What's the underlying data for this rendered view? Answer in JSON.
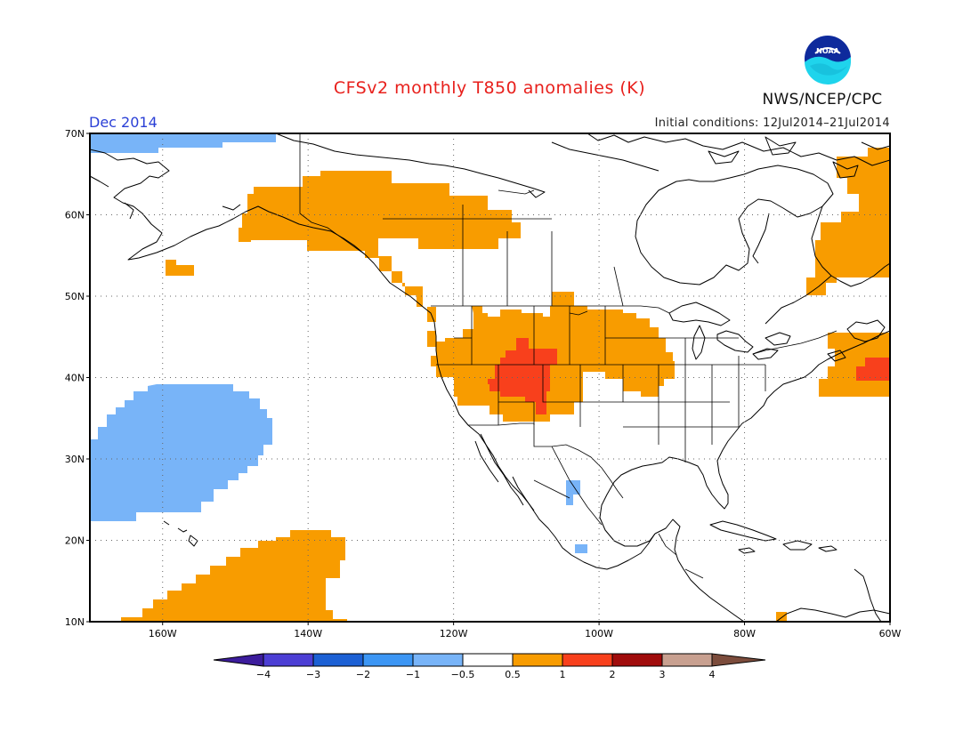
{
  "title": "CFSv2 monthly T850 anomalies (K)",
  "agency": "NWS/NCEP/CPC",
  "logo_text": "NOAA",
  "valid_month": "Dec 2014",
  "initial_conditions": "Initial conditions: 12Jul2014–21Jul2014",
  "map": {
    "lon_range": [
      -170,
      -60
    ],
    "lat_range": [
      10,
      70
    ],
    "lat_ticks": [
      "70N",
      "60N",
      "50N",
      "40N",
      "30N",
      "20N",
      "10N"
    ],
    "lon_ticks": [
      "160W",
      "140W",
      "120W",
      "100W",
      "80W",
      "60W"
    ],
    "gridlines": "dotted",
    "anomaly_regions": [
      {
        "name": "arctic-coast-negative",
        "category": "-1 to -0.5",
        "color": "#78b4f8"
      },
      {
        "name": "alaska-western-canada-warm",
        "category": "0.5 to 1",
        "color": "#f89c00"
      },
      {
        "name": "bering-sea-warm-patch",
        "category": "0.5 to 1",
        "color": "#f89c00"
      },
      {
        "name": "western-us-warm",
        "category": "0.5 to 1",
        "color": "#f89c00"
      },
      {
        "name": "four-corners-hot",
        "category": "1 to 2",
        "color": "#f8401c"
      },
      {
        "name": "northeast-pacific-cool",
        "category": "-1 to -0.5",
        "color": "#78b4f8"
      },
      {
        "name": "central-pacific-warm",
        "category": "0.5 to 1",
        "color": "#f89c00"
      },
      {
        "name": "eastern-canada-warm",
        "category": "0.5 to 1",
        "color": "#f89c00"
      },
      {
        "name": "northwest-atlantic-warm",
        "category": "0.5 to 1",
        "color": "#f89c00"
      },
      {
        "name": "northwest-atlantic-hot",
        "category": "1 to 2",
        "color": "#f8401c"
      },
      {
        "name": "mexico-cool-patches",
        "category": "-1 to -0.5",
        "color": "#78b4f8"
      }
    ]
  },
  "colorbar": {
    "colors": [
      "#3c1c9c",
      "#4c3ed4",
      "#1c60d4",
      "#3c96f4",
      "#78b4f8",
      "#ffffff",
      "#f89c00",
      "#f8401c",
      "#a00c0c",
      "#c8a090",
      "#7c4c3c"
    ],
    "labels": [
      "−4",
      "−3",
      "−2",
      "−1",
      "−0.5",
      "0.5",
      "1",
      "2",
      "3",
      "4"
    ]
  }
}
